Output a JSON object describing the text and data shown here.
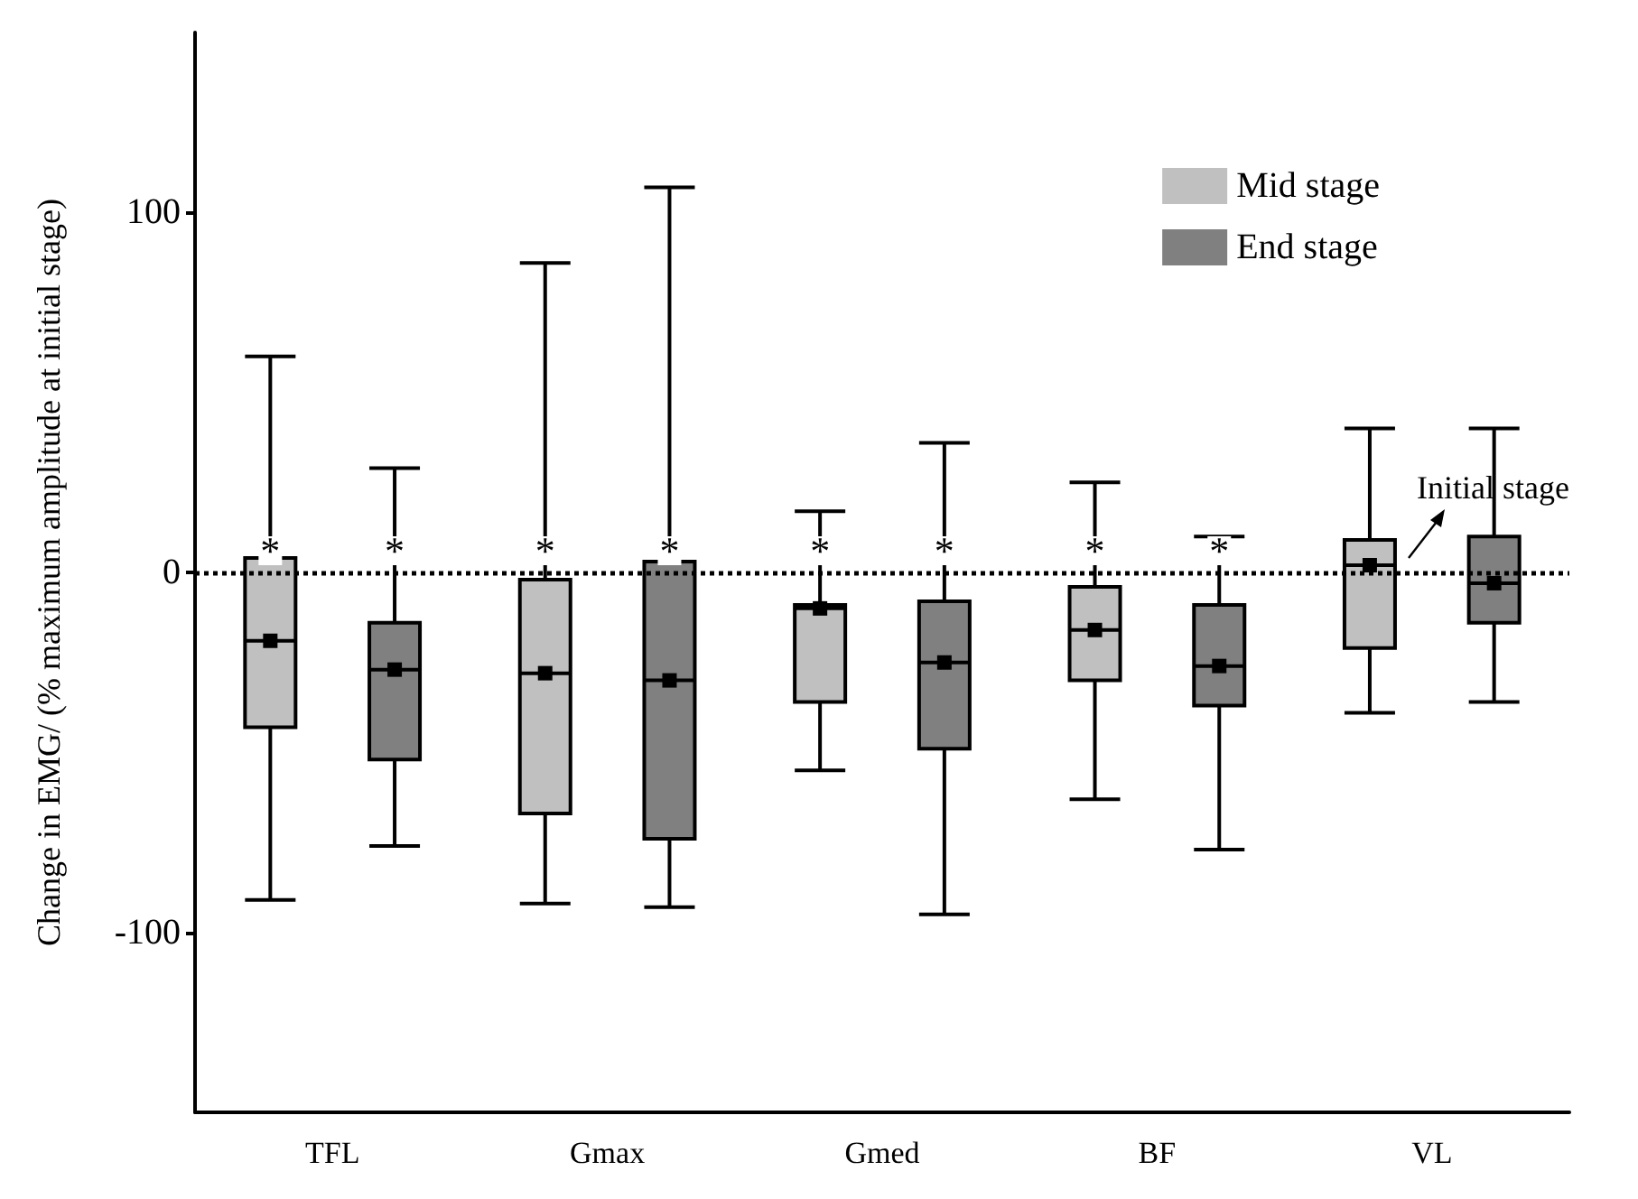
{
  "chart_data": {
    "type": "box",
    "ylabel": "Change in EMG/ (% maximum amplitude at initial stage)",
    "categories": [
      "TFL",
      "Gmax",
      "Gmed",
      "BF",
      "VL"
    ],
    "series": [
      {
        "name": "Mid stage",
        "color": "#c0c0c0",
        "boxes": [
          {
            "low": -91,
            "q1": -43,
            "median": -19,
            "q3": 4,
            "high": 60,
            "mean": -19
          },
          {
            "low": -92,
            "q1": -67,
            "median": -28,
            "q3": -2,
            "high": 86,
            "mean": -28
          },
          {
            "low": -55,
            "q1": -36,
            "median": -10,
            "q3": -9,
            "high": 17,
            "mean": -10
          },
          {
            "low": -63,
            "q1": -30,
            "median": -16,
            "q3": -4,
            "high": 25,
            "mean": -16
          },
          {
            "low": -39,
            "q1": -21,
            "median": 2,
            "q3": 9,
            "high": 40,
            "mean": 2
          }
        ]
      },
      {
        "name": "End stage",
        "color": "#808080",
        "boxes": [
          {
            "low": -76,
            "q1": -52,
            "median": -27,
            "q3": -14,
            "high": 29,
            "mean": -27
          },
          {
            "low": -93,
            "q1": -74,
            "median": -30,
            "q3": 3,
            "high": 107,
            "mean": -30
          },
          {
            "low": -95,
            "q1": -49,
            "median": -25,
            "q3": -8,
            "high": 36,
            "mean": -25
          },
          {
            "low": -77,
            "q1": -37,
            "median": -26,
            "q3": -9,
            "high": 10,
            "mean": -26
          },
          {
            "low": -36,
            "q1": -14,
            "median": -3,
            "q3": 10,
            "high": 40,
            "mean": -3
          }
        ]
      }
    ],
    "ylim": [
      -150,
      150
    ],
    "yticks": [
      -100,
      0,
      100
    ],
    "grid": false,
    "legend": "top right",
    "ref_lines": [
      {
        "axis": "y",
        "value": 0,
        "label": "Initial stage",
        "line_style": "dotted"
      }
    ],
    "annotations": [
      "*",
      "*",
      "*",
      "*",
      "*",
      "*",
      "*",
      "*"
    ]
  }
}
